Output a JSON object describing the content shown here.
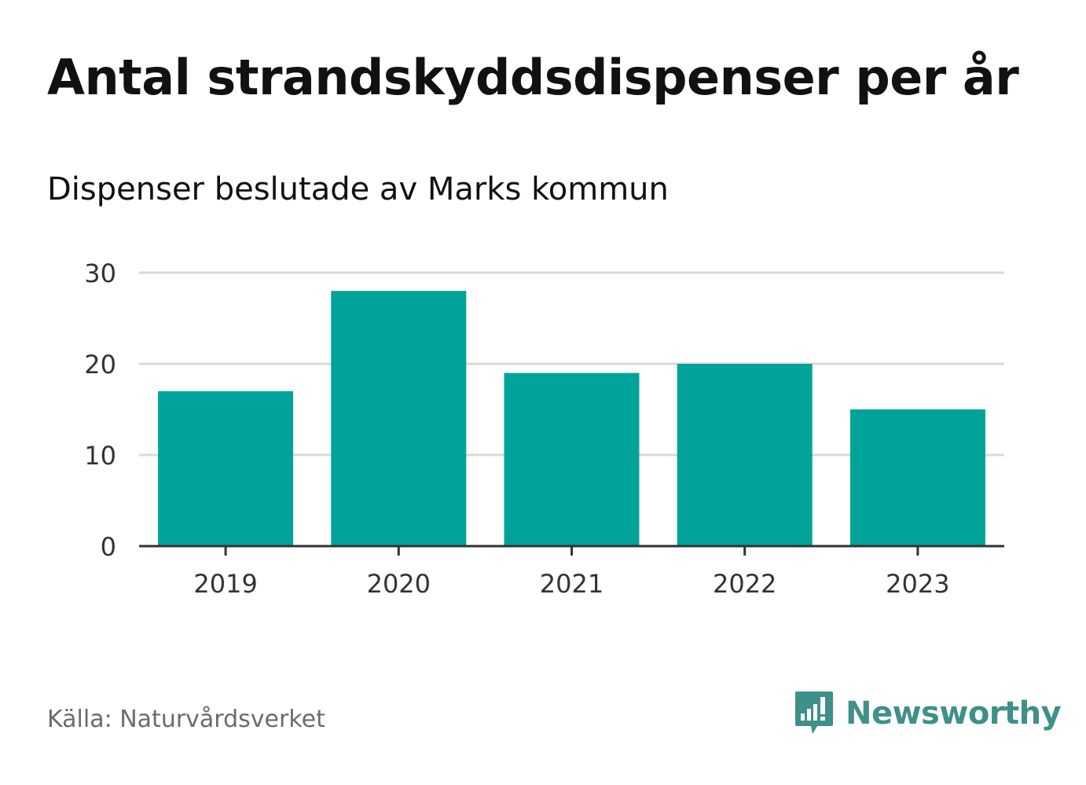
{
  "header": {
    "title": "Antal strandskyddsdispenser per år",
    "subtitle": "Dispenser beslutade av Marks kommun"
  },
  "footer": {
    "source": "Källa: Naturvårdsverket",
    "brand": "Newsworthy",
    "brand_icon": "newsworthy-logo-icon"
  },
  "colors": {
    "bar": "#00a39a",
    "grid": "#d9d9d9",
    "axis": "#333333",
    "brand": "#3e9089"
  },
  "chart_data": {
    "type": "bar",
    "title": "Antal strandskyddsdispenser per år",
    "subtitle": "Dispenser beslutade av Marks kommun",
    "categories": [
      "2019",
      "2020",
      "2021",
      "2022",
      "2023"
    ],
    "values": [
      17,
      28,
      19,
      20,
      15
    ],
    "xlabel": "",
    "ylabel": "",
    "ylim": [
      0,
      30
    ],
    "yticks": [
      0,
      10,
      20,
      30
    ],
    "grid": true,
    "legend": "none"
  }
}
